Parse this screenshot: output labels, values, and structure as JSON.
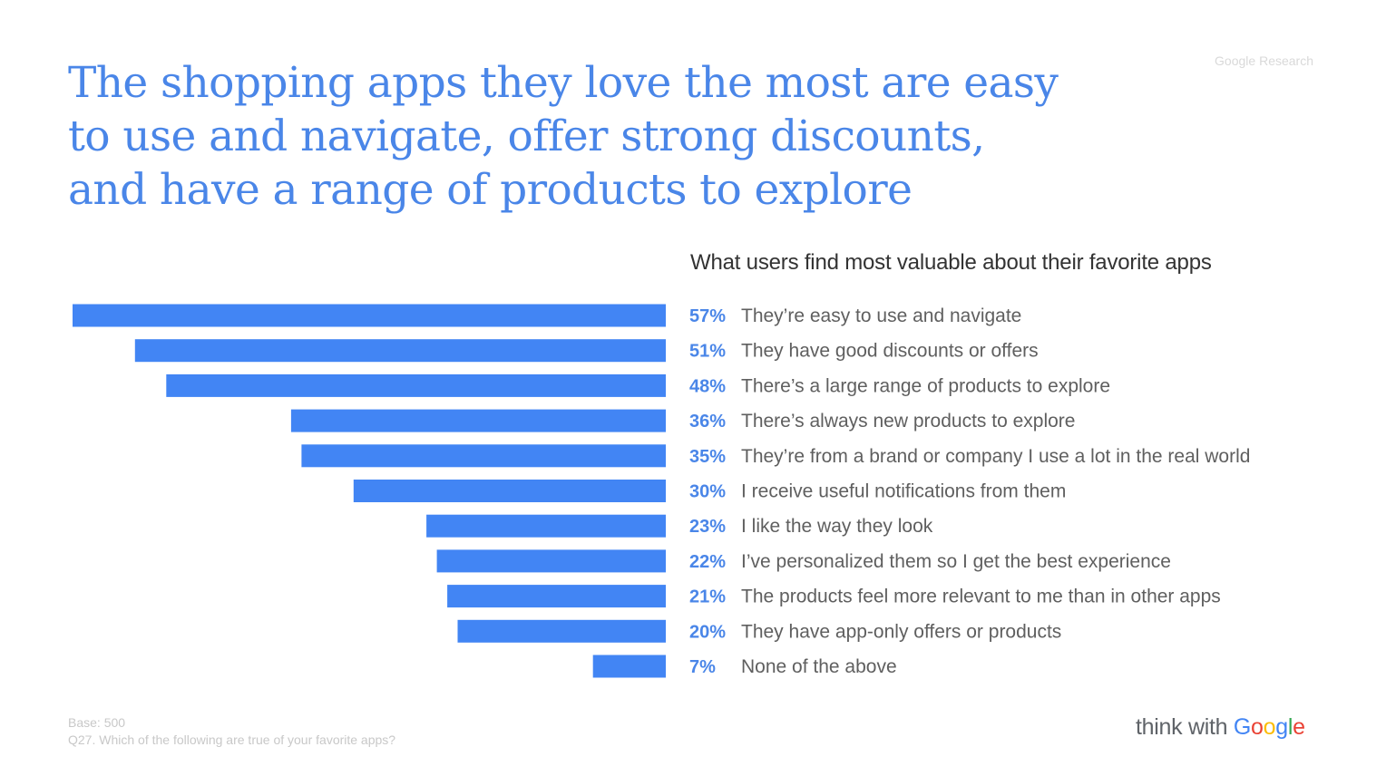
{
  "headline": {
    "line1": "The shopping apps they love the most are easy",
    "line2": "to use and navigate, offer strong discounts,",
    "line3": "and have a range of products to explore"
  },
  "source_tag": "Google Research",
  "chart_data": {
    "type": "bar",
    "orientation": "horizontal",
    "title": "What users find most valuable about their favorite apps",
    "categories": [
      "They’re easy to use and navigate",
      "They have good discounts or offers",
      "There’s a large range of products to explore",
      "There’s always new products to explore",
      "They’re from a brand or company I use a lot in the real world",
      "I receive useful notifications from them",
      "I like the way they look",
      "I’ve personalized them so I get the best experience",
      "The products feel more relevant to me than in other apps",
      "They have app-only offers or products",
      "None of the above"
    ],
    "values": [
      57,
      51,
      48,
      36,
      35,
      30,
      23,
      22,
      21,
      20,
      7
    ],
    "value_labels": [
      "57%",
      "51%",
      "48%",
      "36%",
      "35%",
      "30%",
      "23%",
      "22%",
      "21%",
      "20%",
      "7%"
    ],
    "unit": "%",
    "xlim": [
      0,
      57
    ],
    "bar_direction": "right-aligned, extending left",
    "grid": false,
    "bar_color": "#4285f4",
    "label_color": "#4a86e8"
  },
  "footnote": {
    "base": "Base: 500",
    "question": "Q27. Which of the following are true of your favorite apps?"
  },
  "brand": {
    "think": "think with ",
    "G": "G",
    "o1": "o",
    "o2": "o",
    "g": "g",
    "l": "l",
    "e": "e"
  },
  "colors": {
    "accent_blue": "#4285f4",
    "google_red": "#ea4335",
    "google_yellow": "#fbbc05",
    "google_green": "#34a853"
  }
}
